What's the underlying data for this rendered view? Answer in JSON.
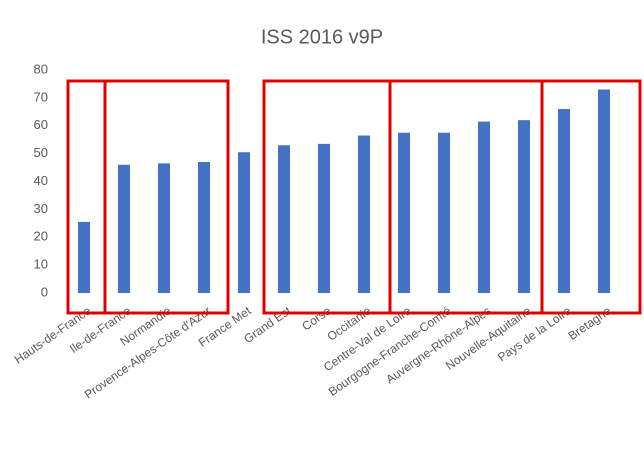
{
  "chart_data": {
    "type": "bar",
    "title": "ISS 2016 v9P",
    "categories": [
      "Hauts-de-France",
      "Ile-de-France",
      "Normandie",
      "Provence-Alpes-Côte d'Azur",
      "France Met",
      "Grand Est",
      "Corse",
      "Occitanie",
      "Centre-Val de Loire",
      "Bourgogne-Franche-Comté",
      "Auvergne-Rhône-Alpes",
      "Nouvelle-Aquitaine",
      "Pays de la Loire",
      "Bretagne"
    ],
    "values": [
      25.5,
      46,
      46.5,
      47,
      50.5,
      53,
      53.5,
      56.5,
      57.5,
      57.5,
      61.5,
      62,
      66,
      73
    ],
    "color": "#4472c4",
    "ylim": [
      0,
      80
    ],
    "yticks": [
      0,
      10,
      20,
      30,
      40,
      50,
      60,
      70,
      80
    ],
    "grid": false
  }
}
